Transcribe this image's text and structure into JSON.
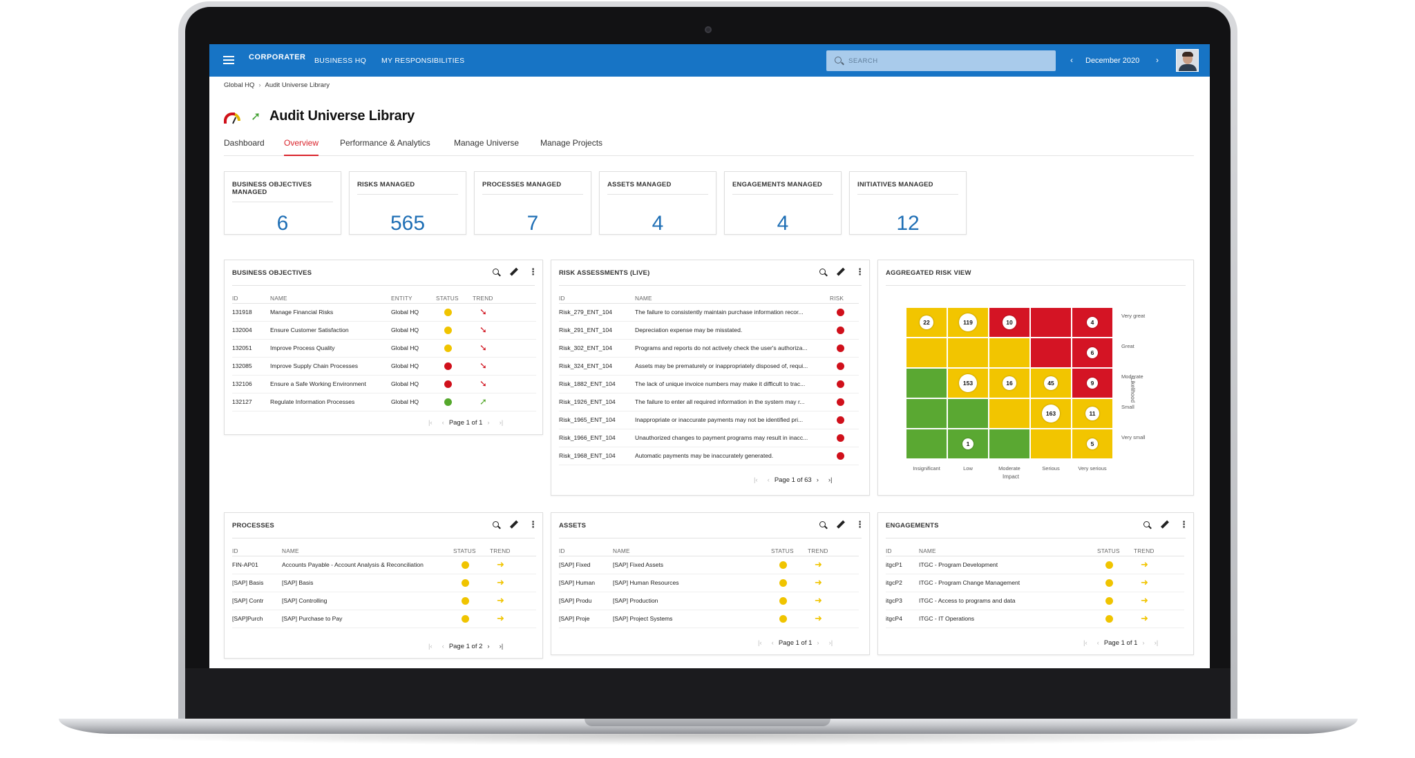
{
  "header": {
    "brand": "CORPORATER",
    "brand_sub": "BUSINESS HQ",
    "nav": [
      "BUSINESS HQ",
      "MY RESPONSIBILITIES"
    ],
    "search_placeholder": "SEARCH",
    "period": "December 2020"
  },
  "breadcrumb": [
    "Global HQ",
    "Audit Universe Library"
  ],
  "page_title": "Audit Universe Library",
  "tabs": [
    "Dashboard",
    "Overview",
    "Performance & Analytics",
    "Manage Universe",
    "Manage Projects"
  ],
  "active_tab": 1,
  "colors": {
    "accent": "#1774c5",
    "active_tab": "#d9222a",
    "kpi_value": "#1f6fb5",
    "yellow": "#f0c400",
    "red": "#d0101b",
    "green": "#55a82c",
    "heat_red": "#d41424",
    "heat_yellow": "#f2c500",
    "heat_green": "#5aa832"
  },
  "kpis": [
    {
      "title": "BUSINESS OBJECTIVES MANAGED",
      "value": "6"
    },
    {
      "title": "RISKS MANAGED",
      "value": "565"
    },
    {
      "title": "PROCESSES MANAGED",
      "value": "7"
    },
    {
      "title": "ASSETS MANAGED",
      "value": "4"
    },
    {
      "title": "ENGAGEMENTS MANAGED",
      "value": "4"
    },
    {
      "title": "INITIATIVES MANAGED",
      "value": "12"
    }
  ],
  "business_objectives": {
    "title": "BUSINESS OBJECTIVES",
    "columns": [
      "ID",
      "NAME",
      "ENTITY",
      "STATUS",
      "TREND"
    ],
    "rows": [
      {
        "id": "131918",
        "name": "Manage Financial Risks",
        "entity": "Global HQ",
        "status": "yellow",
        "trend": "down"
      },
      {
        "id": "132004",
        "name": "Ensure Customer Satisfaction",
        "entity": "Global HQ",
        "status": "yellow",
        "trend": "down"
      },
      {
        "id": "132051",
        "name": "Improve Process Quality",
        "entity": "Global HQ",
        "status": "yellow",
        "trend": "down"
      },
      {
        "id": "132085",
        "name": "Improve Supply Chain Processes",
        "entity": "Global HQ",
        "status": "red",
        "trend": "down"
      },
      {
        "id": "132106",
        "name": "Ensure a Safe Working Environment",
        "entity": "Global HQ",
        "status": "red",
        "trend": "down"
      },
      {
        "id": "132127",
        "name": "Regulate Information Processes",
        "entity": "Global HQ",
        "status": "green",
        "trend": "up"
      }
    ],
    "pager": "Page 1 of 1"
  },
  "risk_assessments": {
    "title": "RISK ASSESSMENTS (LIVE)",
    "columns": [
      "ID",
      "NAME",
      "RISK"
    ],
    "rows": [
      {
        "id": "Risk_279_ENT_104",
        "name": "The failure to consistently maintain purchase information recor...",
        "risk": "red"
      },
      {
        "id": "Risk_291_ENT_104",
        "name": "Depreciation expense may be misstated.",
        "risk": "red"
      },
      {
        "id": "Risk_302_ENT_104",
        "name": "Programs and reports do not actively check the user's authoriza...",
        "risk": "red"
      },
      {
        "id": "Risk_324_ENT_104",
        "name": "Assets may be prematurely or inappropriately disposed of, requi...",
        "risk": "red"
      },
      {
        "id": "Risk_1882_ENT_104",
        "name": "The lack of unique invoice numbers may make it difficult to trac...",
        "risk": "red"
      },
      {
        "id": "Risk_1926_ENT_104",
        "name": "The failure to enter all required information in the system may r...",
        "risk": "red"
      },
      {
        "id": "Risk_1965_ENT_104",
        "name": "Inappropriate or inaccurate payments may not be identified pri...",
        "risk": "red"
      },
      {
        "id": "Risk_1966_ENT_104",
        "name": "Unauthorized changes to payment programs may result in inacc...",
        "risk": "red"
      },
      {
        "id": "Risk_1968_ENT_104",
        "name": "Automatic payments may be inaccurately generated.",
        "risk": "red"
      }
    ],
    "pager": "Page 1 of 63"
  },
  "aggregated_risk": {
    "title": "AGGREGATED RISK VIEW",
    "likelihood_labels": [
      "Very great",
      "Great",
      "Moderate",
      "Small",
      "Very small"
    ],
    "impact_labels": [
      "Insignificant",
      "Low",
      "Moderate",
      "Serious",
      "Very serious"
    ],
    "y_axis": "Likelihood",
    "x_axis": "Impact",
    "grid_colors": [
      [
        "yellow",
        "yellow",
        "red",
        "red",
        "red"
      ],
      [
        "yellow",
        "yellow",
        "yellow",
        "red",
        "red"
      ],
      [
        "green",
        "yellow",
        "yellow",
        "yellow",
        "red"
      ],
      [
        "green",
        "green",
        "yellow",
        "yellow",
        "yellow"
      ],
      [
        "green",
        "green",
        "green",
        "yellow",
        "yellow"
      ]
    ],
    "bubbles": [
      {
        "row": 0,
        "col": 0,
        "value": "22"
      },
      {
        "row": 0,
        "col": 1,
        "value": "119"
      },
      {
        "row": 0,
        "col": 2,
        "value": "10"
      },
      {
        "row": 0,
        "col": 4,
        "value": "4"
      },
      {
        "row": 1,
        "col": 4,
        "value": "6"
      },
      {
        "row": 2,
        "col": 1,
        "value": "153"
      },
      {
        "row": 2,
        "col": 2,
        "value": "16"
      },
      {
        "row": 2,
        "col": 3,
        "value": "45"
      },
      {
        "row": 2,
        "col": 4,
        "value": "9"
      },
      {
        "row": 3,
        "col": 3,
        "value": "163"
      },
      {
        "row": 3,
        "col": 4,
        "value": "11"
      },
      {
        "row": 4,
        "col": 1,
        "value": "1"
      },
      {
        "row": 4,
        "col": 4,
        "value": "5"
      }
    ]
  },
  "processes": {
    "title": "PROCESSES",
    "columns": [
      "ID",
      "NAME",
      "STATUS",
      "TREND"
    ],
    "rows": [
      {
        "id": "FIN-AP01",
        "name": "Accounts Payable - Account Analysis & Reconciliation",
        "status": "yellow",
        "trend": "right"
      },
      {
        "id": "[SAP] Basis",
        "name": "[SAP] Basis",
        "status": "yellow",
        "trend": "right"
      },
      {
        "id": "[SAP] Contr",
        "name": "[SAP] Controlling",
        "status": "yellow",
        "trend": "right"
      },
      {
        "id": "[SAP]Purch",
        "name": "[SAP] Purchase to Pay",
        "status": "yellow",
        "trend": "right"
      }
    ],
    "pager": "Page 1 of 2"
  },
  "assets": {
    "title": "ASSETS",
    "columns": [
      "ID",
      "NAME",
      "STATUS",
      "TREND"
    ],
    "rows": [
      {
        "id": "[SAP] Fixed",
        "name": "[SAP] Fixed Assets",
        "status": "yellow",
        "trend": "right"
      },
      {
        "id": "[SAP] Human",
        "name": "[SAP] Human Resources",
        "status": "yellow",
        "trend": "right"
      },
      {
        "id": "[SAP] Produ",
        "name": "[SAP] Production",
        "status": "yellow",
        "trend": "right"
      },
      {
        "id": "[SAP] Proje",
        "name": "[SAP] Project Systems",
        "status": "yellow",
        "trend": "right"
      }
    ],
    "pager": "Page 1 of 1"
  },
  "engagements": {
    "title": "ENGAGEMENTS",
    "columns": [
      "ID",
      "NAME",
      "STATUS",
      "TREND"
    ],
    "rows": [
      {
        "id": "itgcP1",
        "name": "ITGC - Program Development",
        "status": "yellow",
        "trend": "right"
      },
      {
        "id": "itgcP2",
        "name": "ITGC - Program Change Management",
        "status": "yellow",
        "trend": "right"
      },
      {
        "id": "itgcP3",
        "name": "ITGC - Access to programs and data",
        "status": "yellow",
        "trend": "right"
      },
      {
        "id": "itgcP4",
        "name": "ITGC - IT Operations",
        "status": "yellow",
        "trend": "right"
      }
    ],
    "pager": "Page 1 of 1"
  }
}
